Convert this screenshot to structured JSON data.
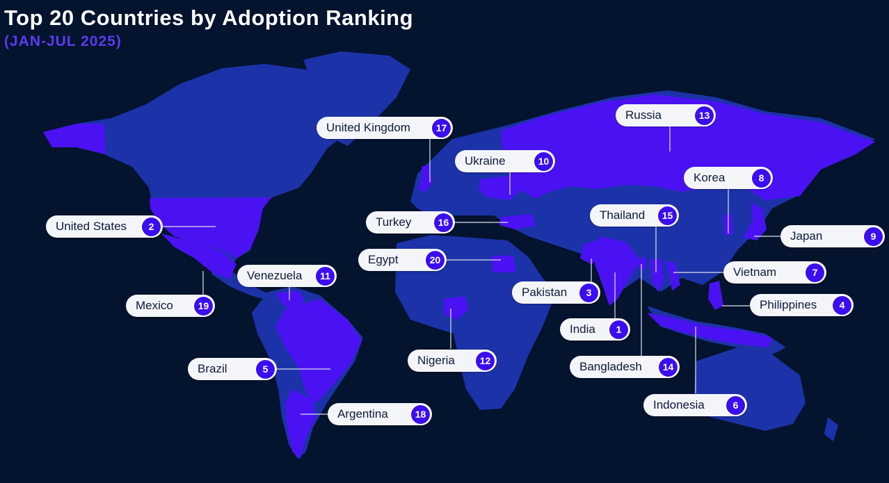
{
  "title": "Top 20 Countries by Adoption Ranking",
  "subtitle": "(JAN-JUL 2025)",
  "colors": {
    "background": "#04132e",
    "land": "#1c32a8",
    "highlight": "#4a12f2",
    "subtitle": "#5b3cf0",
    "badge": "#3a0ef0",
    "pill": "#f4f5f8"
  },
  "countries": [
    {
      "name": "United Kingdom",
      "rank": "17"
    },
    {
      "name": "Russia",
      "rank": "13"
    },
    {
      "name": "Ukraine",
      "rank": "10"
    },
    {
      "name": "Korea",
      "rank": "8"
    },
    {
      "name": "Thailand",
      "rank": "15"
    },
    {
      "name": "United States",
      "rank": "2"
    },
    {
      "name": "Turkey",
      "rank": "16"
    },
    {
      "name": "Japan",
      "rank": "9"
    },
    {
      "name": "Egypt",
      "rank": "20"
    },
    {
      "name": "Vietnam",
      "rank": "7"
    },
    {
      "name": "Venezuela",
      "rank": "11"
    },
    {
      "name": "Pakistan",
      "rank": "3"
    },
    {
      "name": "Mexico",
      "rank": "19"
    },
    {
      "name": "Philippines",
      "rank": "4"
    },
    {
      "name": "India",
      "rank": "1"
    },
    {
      "name": "Nigeria",
      "rank": "12"
    },
    {
      "name": "Brazil",
      "rank": "5"
    },
    {
      "name": "Bangladesh",
      "rank": "14"
    },
    {
      "name": "Indonesia",
      "rank": "6"
    },
    {
      "name": "Argentina",
      "rank": "18"
    }
  ]
}
